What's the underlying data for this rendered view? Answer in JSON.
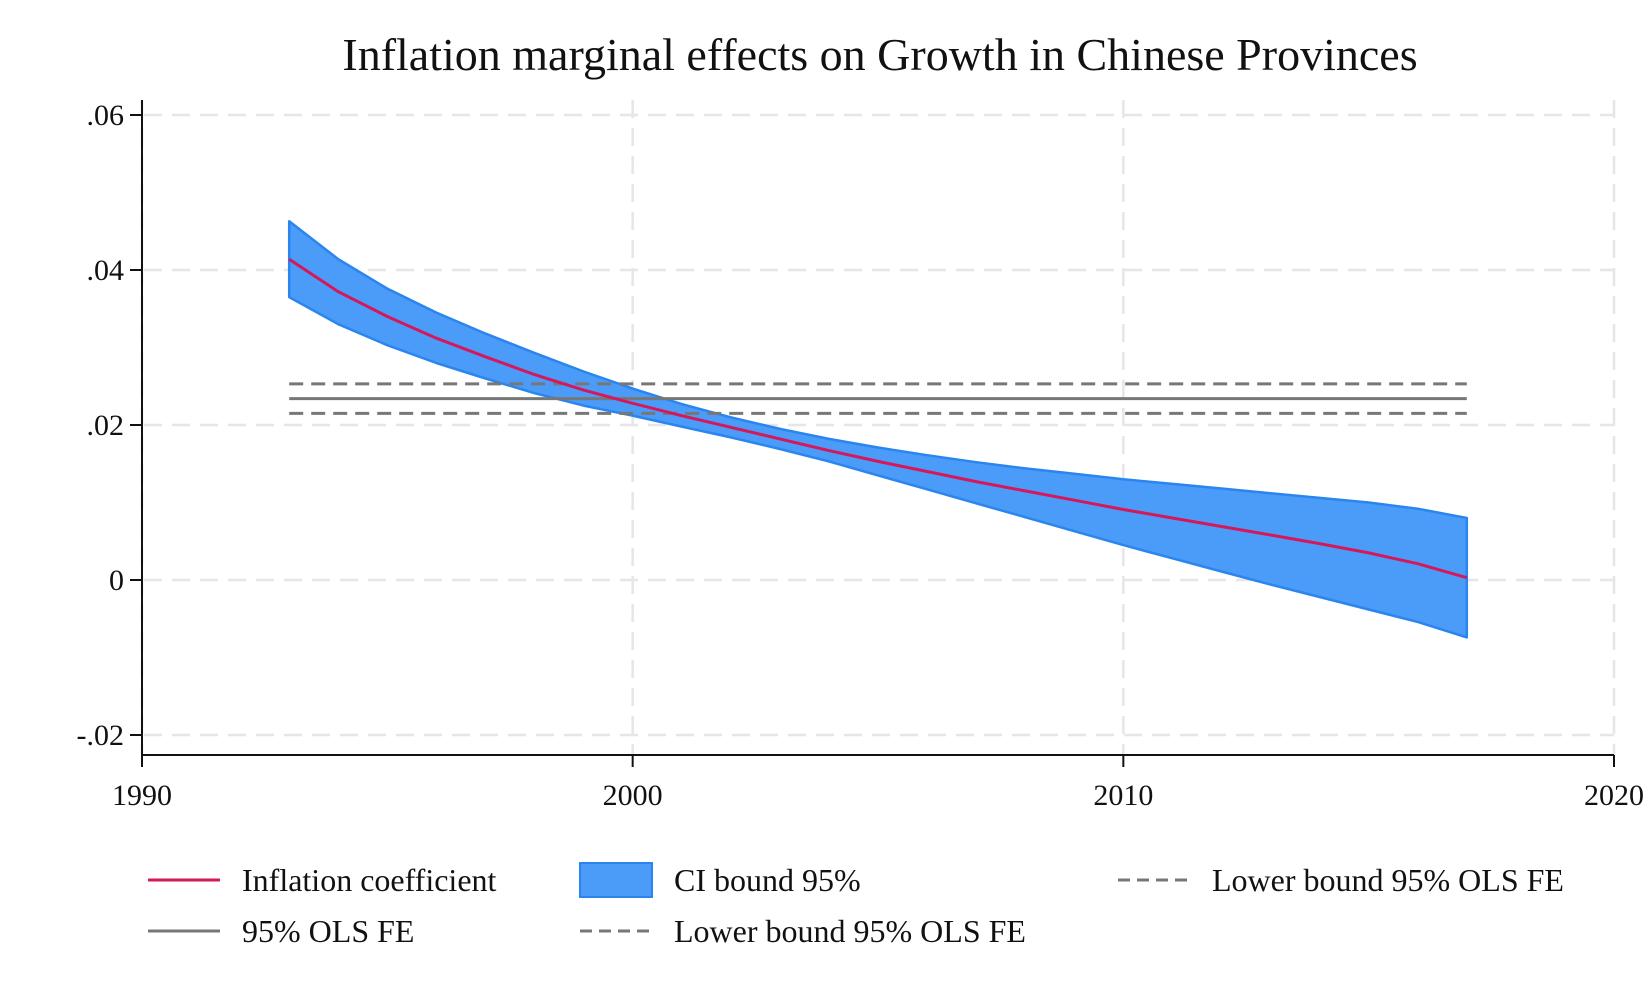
{
  "chart_data": {
    "type": "line",
    "title": "Inflation marginal effects on Growth in Chinese Provinces",
    "xlabel": "",
    "ylabel": "",
    "xlim": [
      1990,
      2020
    ],
    "ylim": [
      -0.02,
      0.06
    ],
    "x_ticks": [
      1990,
      2000,
      2010,
      2020
    ],
    "x_tick_labels": [
      "1990",
      "2000",
      "2010",
      "2020"
    ],
    "y_ticks": [
      -0.02,
      0,
      0.02,
      0.04,
      0.06
    ],
    "y_tick_labels": [
      "-.02",
      "0",
      ".02",
      ".04",
      ".06"
    ],
    "grid": true,
    "legend_position": "bottom",
    "x": [
      1993,
      1994,
      1995,
      1996,
      1997,
      1998,
      1999,
      2000,
      2001,
      2002,
      2003,
      2004,
      2005,
      2006,
      2007,
      2008,
      2009,
      2010,
      2011,
      2012,
      2013,
      2014,
      2015,
      2016,
      2017
    ],
    "series": [
      {
        "name": "Inflation coefficient",
        "kind": "line",
        "color": "#d6185a",
        "values": [
          0.0414,
          0.0372,
          0.034,
          0.0312,
          0.0288,
          0.0265,
          0.0245,
          0.0228,
          0.0212,
          0.0197,
          0.0182,
          0.0167,
          0.0153,
          0.014,
          0.0127,
          0.0115,
          0.0103,
          0.0091,
          0.008,
          0.0069,
          0.0058,
          0.0047,
          0.0035,
          0.0021,
          0.0003
        ]
      },
      {
        "name": "CI bound 95%",
        "kind": "band",
        "color": "#4b9bf9",
        "edge_color": "#2a86ee",
        "upper": [
          0.0463,
          0.0414,
          0.0376,
          0.0345,
          0.0318,
          0.0293,
          0.0269,
          0.0247,
          0.0227,
          0.021,
          0.0195,
          0.0182,
          0.0171,
          0.0161,
          0.0152,
          0.0144,
          0.0137,
          0.013,
          0.0124,
          0.0118,
          0.0112,
          0.0106,
          0.01,
          0.0092,
          0.008
        ],
        "lower": [
          0.0365,
          0.033,
          0.0303,
          0.028,
          0.026,
          0.0241,
          0.0225,
          0.0212,
          0.0198,
          0.0184,
          0.0169,
          0.0153,
          0.0135,
          0.0117,
          0.0099,
          0.0081,
          0.0063,
          0.0045,
          0.0028,
          0.0011,
          -0.0006,
          -0.0022,
          -0.0038,
          -0.0054,
          -0.0074
        ]
      },
      {
        "name": "95% OLS FE",
        "kind": "hline",
        "color": "#777777",
        "dash": false,
        "value": 0.0234,
        "x_range": [
          1993,
          2017
        ]
      },
      {
        "name": "Lower bound 95% OLS FE",
        "kind": "hline",
        "color": "#777777",
        "dash": true,
        "value": 0.0253,
        "x_range": [
          1993,
          2017
        ]
      },
      {
        "name": "Lower bound 95% OLS FE",
        "kind": "hline",
        "color": "#777777",
        "dash": true,
        "value": 0.0215,
        "x_range": [
          1993,
          2017
        ]
      }
    ]
  }
}
